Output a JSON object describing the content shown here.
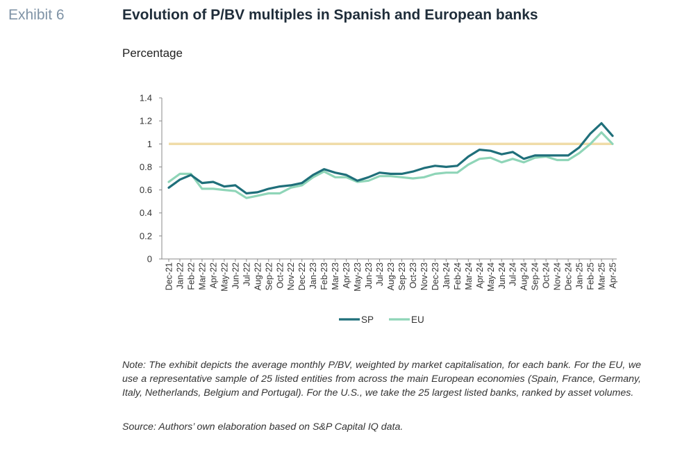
{
  "header": {
    "exhibit": "Exhibit 6",
    "title": "Evolution of P/BV multiples in Spanish and European banks",
    "subtitle": "Percentage"
  },
  "chart_data": {
    "type": "line",
    "categories": [
      "Dec-21",
      "Jan-22",
      "Feb-22",
      "Mar-22",
      "Apr-22",
      "May-22",
      "Jun-22",
      "Jul-22",
      "Aug-22",
      "Sep-22",
      "Oct-22",
      "Nov-22",
      "Dec-22",
      "Jan-23",
      "Feb-23",
      "Mar-23",
      "Apr-23",
      "May-23",
      "Jun-23",
      "Jul-23",
      "Aug-23",
      "Sep-23",
      "Oct-23",
      "Nov-23",
      "Dec-23",
      "Jan-24",
      "Feb-24",
      "Mar-24",
      "Apr-24",
      "May-24",
      "Jun-24",
      "Jul-24",
      "Aug-24",
      "Sep-24",
      "Oct-24",
      "Nov-24",
      "Dec-24",
      "Jan-25",
      "Feb-25",
      "Mar-25",
      "Apr-25"
    ],
    "series": [
      {
        "name": "SP",
        "color": "#1f6f7a",
        "values": [
          0.62,
          0.69,
          0.73,
          0.66,
          0.67,
          0.63,
          0.64,
          0.57,
          0.58,
          0.61,
          0.63,
          0.64,
          0.66,
          0.73,
          0.78,
          0.75,
          0.73,
          0.68,
          0.71,
          0.75,
          0.74,
          0.74,
          0.76,
          0.79,
          0.81,
          0.8,
          0.81,
          0.89,
          0.95,
          0.94,
          0.91,
          0.93,
          0.87,
          0.9,
          0.9,
          0.9,
          0.9,
          0.97,
          1.09,
          1.18,
          1.07
        ]
      },
      {
        "name": "EU",
        "color": "#8fd5b8",
        "values": [
          0.67,
          0.74,
          0.74,
          0.61,
          0.61,
          0.6,
          0.59,
          0.53,
          0.55,
          0.57,
          0.57,
          0.62,
          0.64,
          0.71,
          0.76,
          0.71,
          0.71,
          0.67,
          0.68,
          0.72,
          0.72,
          0.71,
          0.7,
          0.71,
          0.74,
          0.75,
          0.75,
          0.82,
          0.87,
          0.88,
          0.84,
          0.87,
          0.84,
          0.88,
          0.89,
          0.86,
          0.86,
          0.92,
          1.0,
          1.1,
          1.0
        ]
      }
    ],
    "reference_line": {
      "value": 1,
      "color": "#f0dca8"
    },
    "ylim": [
      0,
      1.4
    ],
    "yticks": [
      "0",
      "0.2",
      "0.4",
      "0.6",
      "0.8",
      "1",
      "1.2",
      "1.4"
    ],
    "xlabel": "",
    "ylabel": "",
    "legend": "bottom-center",
    "grid": false
  },
  "footer": {
    "note": "Note: The exhibit depicts the average monthly P/BV, weighted by market capitalisation, for each bank. For the EU, we use a representative sample of 25 listed entities from across the main European economies (Spain, France, Germany, Italy, Netherlands, Belgium and Portugal). For the U.S., we take the 25 largest listed banks, ranked by asset volumes.",
    "source": "Source: Authors’ own elaboration based on S&P Capital IQ data."
  }
}
